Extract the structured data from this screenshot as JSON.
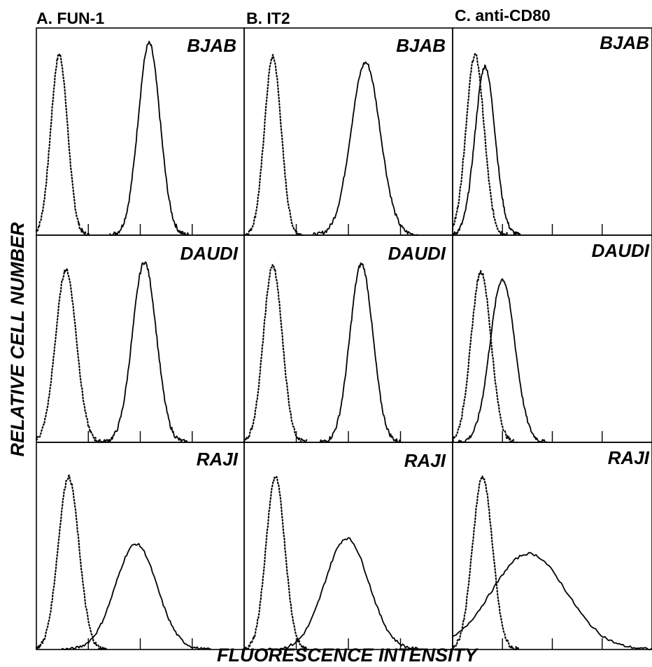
{
  "figure": {
    "xlabel": "FLUORESCENCE INTENSITY",
    "ylabel": "RELATIVE CELL NUMBER"
  },
  "columns": [
    {
      "title": "A.  FUN-1"
    },
    {
      "title": "B.  IT2"
    },
    {
      "title": "C.  anti-CD80"
    }
  ],
  "rows": [
    {
      "cell_line": "BJAB"
    },
    {
      "cell_line": "DAUDI"
    },
    {
      "cell_line": "RAJI"
    }
  ],
  "chart_data": {
    "type": "histogram-grid",
    "x_scale": "log",
    "xlim": [
      0,
      4
    ],
    "ylim": [
      0,
      1
    ],
    "x_ticks": [
      1,
      2,
      3
    ],
    "legend": "none",
    "grid": false,
    "panels": [
      {
        "antibody": "A.  FUN-1",
        "cell_line": "BJAB",
        "control_peak": {
          "mode": 0.44,
          "sd": 0.16,
          "height": 0.94
        },
        "stained_peak": {
          "mode": 2.17,
          "sd": 0.21,
          "height": 1.0
        }
      },
      {
        "antibody": "B.  IT2",
        "cell_line": "BJAB",
        "control_peak": {
          "mode": 0.55,
          "sd": 0.16,
          "height": 0.93
        },
        "stained_peak": {
          "mode": 2.33,
          "sd": 0.28,
          "height": 0.9
        }
      },
      {
        "antibody": "C.  anti-CD80",
        "cell_line": "BJAB",
        "control_peak": {
          "mode": 0.45,
          "sd": 0.18,
          "height": 0.94
        },
        "stained_peak": {
          "mode": 0.65,
          "sd": 0.2,
          "height": 0.88
        }
      },
      {
        "antibody": "A.  FUN-1",
        "cell_line": "DAUDI",
        "control_peak": {
          "mode": 0.57,
          "sd": 0.2,
          "height": 0.9
        },
        "stained_peak": {
          "mode": 2.08,
          "sd": 0.23,
          "height": 0.94
        }
      },
      {
        "antibody": "B.  IT2",
        "cell_line": "DAUDI",
        "control_peak": {
          "mode": 0.55,
          "sd": 0.18,
          "height": 0.92
        },
        "stained_peak": {
          "mode": 2.25,
          "sd": 0.22,
          "height": 0.93
        }
      },
      {
        "antibody": "C.  anti-CD80",
        "cell_line": "DAUDI",
        "control_peak": {
          "mode": 0.57,
          "sd": 0.2,
          "height": 0.89
        },
        "stained_peak": {
          "mode": 1.0,
          "sd": 0.25,
          "height": 0.85
        }
      },
      {
        "antibody": "A.  FUN-1",
        "cell_line": "RAJI",
        "control_peak": {
          "mode": 0.62,
          "sd": 0.2,
          "height": 0.9
        },
        "stained_peak": {
          "mode": 1.92,
          "sd": 0.4,
          "height": 0.55
        }
      },
      {
        "antibody": "B.  IT2",
        "cell_line": "RAJI",
        "control_peak": {
          "mode": 0.6,
          "sd": 0.18,
          "height": 0.9
        },
        "stained_peak": {
          "mode": 1.97,
          "sd": 0.42,
          "height": 0.58
        }
      },
      {
        "antibody": "C.  anti-CD80",
        "cell_line": "RAJI",
        "control_peak": {
          "mode": 0.6,
          "sd": 0.2,
          "height": 0.9
        },
        "stained_peak": {
          "mode": 1.53,
          "sd": 0.75,
          "height": 0.5
        }
      }
    ]
  }
}
